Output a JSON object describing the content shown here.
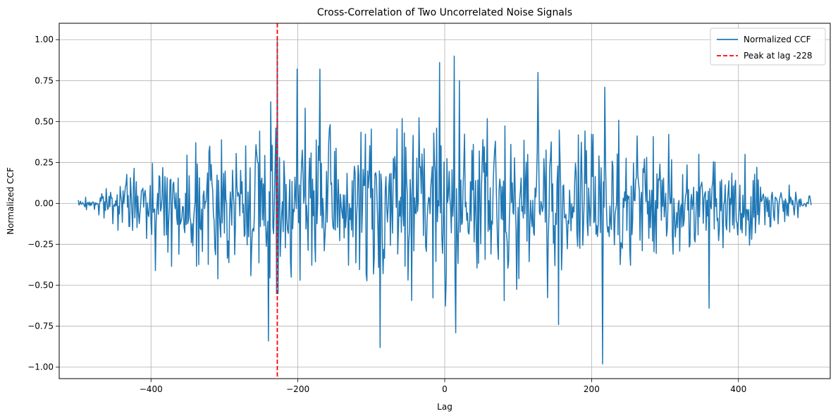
{
  "chart_data": {
    "type": "line",
    "title": "Cross-Correlation of Two Uncorrelated Noise Signals",
    "xlabel": "Lag",
    "ylabel": "Normalized CCF",
    "xlim": [
      -525,
      525
    ],
    "ylim": [
      -1.07,
      1.1
    ],
    "xticks": [
      -400,
      -200,
      0,
      200,
      400
    ],
    "xtick_labels": [
      "−400",
      "−200",
      "0",
      "200",
      "400"
    ],
    "yticks": [
      -1.0,
      -0.75,
      -0.5,
      -0.25,
      0.0,
      0.25,
      0.5,
      0.75,
      1.0
    ],
    "ytick_labels": [
      "−1.00",
      "−0.75",
      "−0.50",
      "−0.25",
      "0.00",
      "0.25",
      "0.50",
      "0.75",
      "1.00"
    ],
    "grid": true,
    "legend_position": "top-right",
    "series": [
      {
        "name": "Normalized CCF",
        "color": "#1f77b4",
        "style": "solid",
        "x_range": [
          -499,
          499
        ],
        "noise_seed": 7,
        "envelope_points": [
          [
            -500,
            0.02
          ],
          [
            -450,
            0.15
          ],
          [
            -400,
            0.28
          ],
          [
            -350,
            0.42
          ],
          [
            -300,
            0.5
          ],
          [
            -250,
            0.55
          ],
          [
            -200,
            0.58
          ],
          [
            -100,
            0.6
          ],
          [
            0,
            0.62
          ],
          [
            100,
            0.6
          ],
          [
            200,
            0.52
          ],
          [
            300,
            0.42
          ],
          [
            400,
            0.3
          ],
          [
            450,
            0.2
          ],
          [
            499,
            0.05
          ]
        ],
        "key_points": [
          [
            -499,
            0.02
          ],
          [
            -498,
            -0.01
          ],
          [
            -240,
            -0.84
          ],
          [
            -237,
            0.62
          ],
          [
            -230,
            0.46
          ],
          [
            -229,
            -0.55
          ],
          [
            -228,
            1.0
          ],
          [
            -227,
            -0.55
          ],
          [
            -201,
            0.82
          ],
          [
            -170,
            0.82
          ],
          [
            -88,
            -0.88
          ],
          [
            -7,
            0.86
          ],
          [
            13,
            0.9
          ],
          [
            15,
            -0.79
          ],
          [
            20,
            0.75
          ],
          [
            127,
            0.8
          ],
          [
            155,
            -0.74
          ],
          [
            215,
            -0.98
          ],
          [
            218,
            0.71
          ],
          [
            360,
            -0.64
          ],
          [
            499,
            -0.01
          ]
        ]
      },
      {
        "name": "Peak at lag -228",
        "color": "#ff0000",
        "style": "dashed",
        "x": -228
      }
    ]
  }
}
